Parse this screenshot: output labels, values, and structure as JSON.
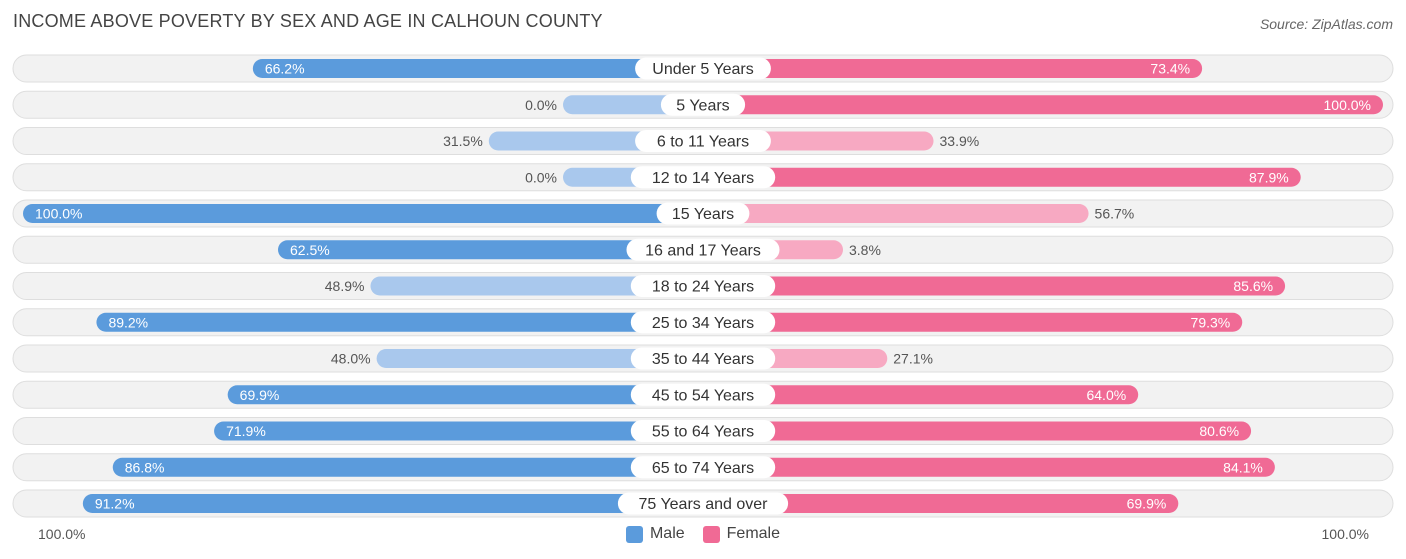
{
  "title": "INCOME ABOVE POVERTY BY SEX AND AGE IN CALHOUN COUNTY",
  "source": "Source: ZipAtlas.com",
  "axis": {
    "left_label": "100.0%",
    "right_label": "100.0%"
  },
  "legend": {
    "male": "Male",
    "female": "Female"
  },
  "colors": {
    "male_strong": "#5b9bdc",
    "male_light": "#a9c8ed",
    "female_strong": "#f06a95",
    "female_light": "#f7a9c2",
    "row_bg": "#f2f2f2",
    "row_border": "#dedede"
  },
  "chart_data": {
    "type": "bar",
    "orientation": "horizontal-diverging",
    "xlim": [
      -100,
      100
    ],
    "categories": [
      "Under 5 Years",
      "5 Years",
      "6 to 11 Years",
      "12 to 14 Years",
      "15 Years",
      "16 and 17 Years",
      "18 to 24 Years",
      "25 to 34 Years",
      "35 to 44 Years",
      "45 to 54 Years",
      "55 to 64 Years",
      "65 to 74 Years",
      "75 Years and over"
    ],
    "series": [
      {
        "name": "Male",
        "values": [
          66.2,
          0.0,
          31.5,
          0.0,
          100.0,
          62.5,
          48.9,
          89.2,
          48.0,
          69.9,
          71.9,
          86.8,
          91.2
        ],
        "labels": [
          "66.2%",
          "0.0%",
          "31.5%",
          "0.0%",
          "100.0%",
          "62.5%",
          "48.9%",
          "89.2%",
          "48.0%",
          "69.9%",
          "71.9%",
          "86.8%",
          "91.2%"
        ]
      },
      {
        "name": "Female",
        "values": [
          73.4,
          100.0,
          33.9,
          87.9,
          56.7,
          3.8,
          85.6,
          79.3,
          27.1,
          64.0,
          80.6,
          84.1,
          69.9
        ],
        "labels": [
          "73.4%",
          "100.0%",
          "33.9%",
          "87.9%",
          "56.7%",
          "3.8%",
          "85.6%",
          "79.3%",
          "27.1%",
          "64.0%",
          "80.6%",
          "84.1%",
          "69.9%"
        ]
      }
    ]
  }
}
